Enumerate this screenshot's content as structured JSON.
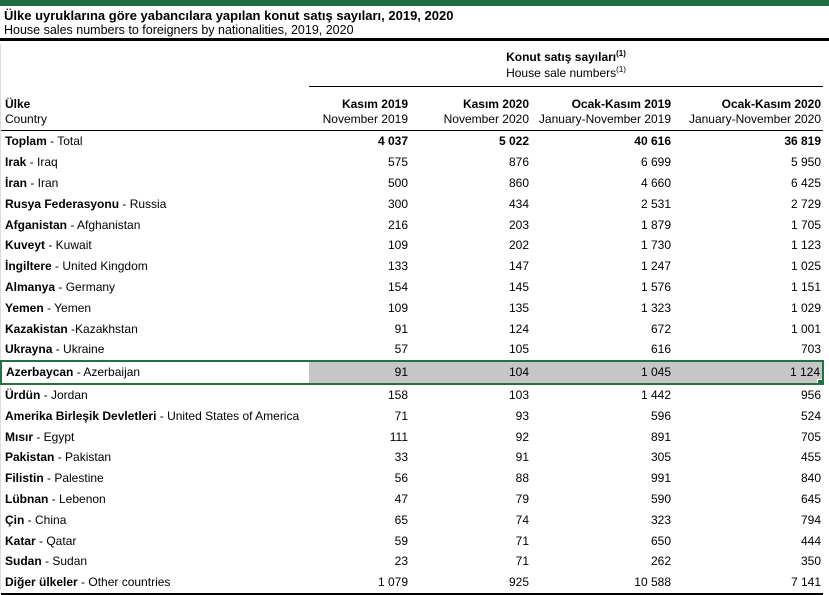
{
  "page": {
    "title_tr": "Ülke uyruklarına göre yabancılara yapılan konut satış sayıları, 2019, 2020",
    "title_en": "House sales numbers to foreigners by nationalities, 2019, 2020"
  },
  "colors": {
    "accent_green": "#1f6e43",
    "selection_border_green": "#217346",
    "selection_fill_gray": "#c6c6c6",
    "rule_black": "#000000"
  },
  "table": {
    "group_header": {
      "tr": "Konut satış sayıları",
      "en": "House sale numbers",
      "footnote": "(1)"
    },
    "country_header": {
      "tr": "Ülke",
      "en": "Country"
    },
    "columns": [
      {
        "tr": "Kasım 2019",
        "en": "November 2019"
      },
      {
        "tr": "Kasım 2020",
        "en": "November 2020"
      },
      {
        "tr": "Ocak-Kasım 2019",
        "en": "January-November 2019"
      },
      {
        "tr": "Ocak-Kasım 2020",
        "en": "January-November 2020"
      }
    ],
    "selected_row": "Azerbaycan - Azerbaijan",
    "rows": [
      {
        "tr": "Toplam",
        "rest": " - Total",
        "v": [
          "4 037",
          "5 022",
          "40 616",
          "36 819"
        ]
      },
      {
        "tr": "Irak",
        "rest": " - Iraq",
        "v": [
          "575",
          "876",
          "6 699",
          "5 950"
        ]
      },
      {
        "tr": "İran",
        "rest": " - Iran",
        "v": [
          "500",
          "860",
          "4 660",
          "6 425"
        ]
      },
      {
        "tr": "Rusya Federasyonu",
        "rest": " - Russia",
        "v": [
          "300",
          "434",
          "2 531",
          "2 729"
        ]
      },
      {
        "tr": "Afganistan",
        "rest": " - Afghanistan",
        "v": [
          "216",
          "203",
          "1 879",
          "1 705"
        ]
      },
      {
        "tr": "Kuveyt",
        "rest": " - Kuwait",
        "v": [
          "109",
          "202",
          "1 730",
          "1 123"
        ]
      },
      {
        "tr": "İngiltere",
        "rest": " - United Kingdom",
        "v": [
          "133",
          "147",
          "1 247",
          "1 025"
        ]
      },
      {
        "tr": "Almanya",
        "rest": " - Germany",
        "v": [
          "154",
          "145",
          "1 576",
          "1 151"
        ]
      },
      {
        "tr": "Yemen",
        "rest": " - Yemen",
        "v": [
          "109",
          "135",
          "1 323",
          "1 029"
        ]
      },
      {
        "tr": "Kazakistan",
        "rest": " -Kazakhstan",
        "v": [
          "91",
          "124",
          "672",
          "1 001"
        ]
      },
      {
        "tr": "Ukrayna",
        "rest": " - Ukraine",
        "v": [
          "57",
          "105",
          "616",
          "703"
        ]
      },
      {
        "tr": "Azerbaycan",
        "rest": " - Azerbaijan",
        "v": [
          "91",
          "104",
          "1 045",
          "1 124"
        ]
      },
      {
        "tr": "Ürdün",
        "rest": " - Jordan",
        "v": [
          "158",
          "103",
          "1 442",
          "956"
        ]
      },
      {
        "tr": "Amerika Birleşik Devletleri",
        "rest": " - United States of America",
        "v": [
          "71",
          "93",
          "596",
          "524"
        ]
      },
      {
        "tr": "Mısır",
        "rest": " - Egypt",
        "v": [
          "111",
          "92",
          "891",
          "705"
        ]
      },
      {
        "tr": "Pakistan",
        "rest": " - Pakistan",
        "v": [
          "33",
          "91",
          "305",
          "455"
        ]
      },
      {
        "tr": "Filistin",
        "rest": " - Palestine",
        "v": [
          "56",
          "88",
          "991",
          "840"
        ]
      },
      {
        "tr": "Lübnan",
        "rest": " - Lebenon",
        "v": [
          "47",
          "79",
          "590",
          "645"
        ]
      },
      {
        "tr": "Çin",
        "rest": " - China",
        "v": [
          "65",
          "74",
          "323",
          "794"
        ]
      },
      {
        "tr": "Katar",
        "rest": " - Qatar",
        "v": [
          "59",
          "71",
          "650",
          "444"
        ]
      },
      {
        "tr": "Sudan",
        "rest": " - Sudan",
        "v": [
          "23",
          "71",
          "262",
          "350"
        ]
      },
      {
        "tr": "Diğer ülkeler",
        "rest": " - Other countries",
        "v": [
          "1 079",
          "925",
          "10 588",
          "7 141"
        ]
      }
    ]
  }
}
